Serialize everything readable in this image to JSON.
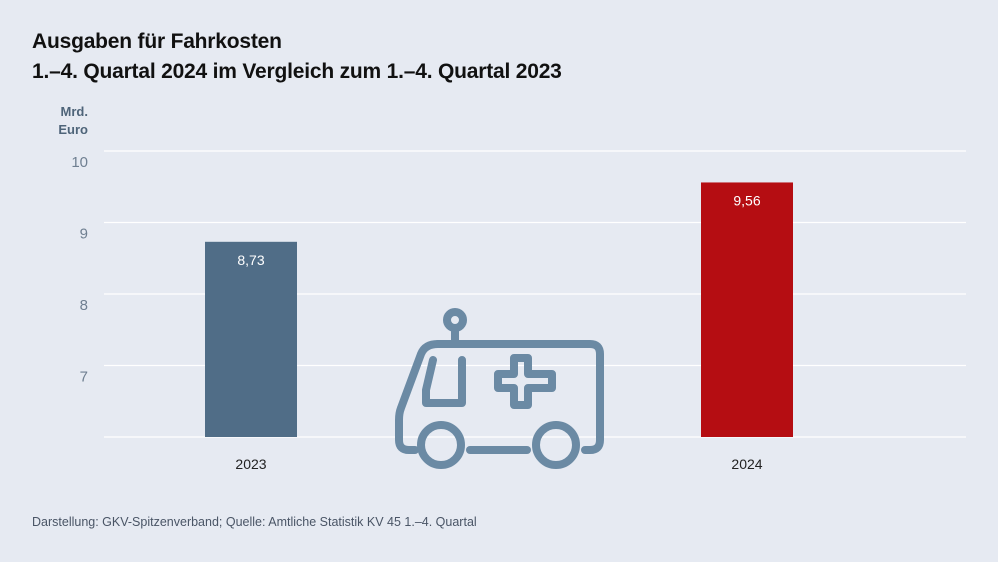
{
  "header": {
    "title_line1": "Ausgaben für Fahrkosten",
    "title_line2": "1.–4. Quartal 2024 im Vergleich zum 1.–4. Quartal 2023"
  },
  "axis_unit": {
    "line1": "Mrd.",
    "line2": "Euro"
  },
  "footer": {
    "source": "Darstellung: GKV-Spitzenverband; Quelle: Amtliche Statistik KV 45 1.–4. Quartal"
  },
  "chart_data": {
    "type": "bar",
    "title": "Ausgaben für Fahrkosten – 1.–4. Quartal 2024 im Vergleich zum 1.–4. Quartal 2023",
    "ylabel": "Mrd. Euro",
    "xlabel": "",
    "ylim": [
      6,
      10
    ],
    "yticks": [
      7,
      8,
      9,
      10
    ],
    "grid": true,
    "categories": [
      "2023",
      "2024"
    ],
    "values": [
      8.73,
      9.56
    ],
    "value_labels": [
      "8,73",
      "9,56"
    ],
    "colors": [
      "#506d87",
      "#b50d12"
    ],
    "annotation_icon": "ambulance-icon"
  }
}
